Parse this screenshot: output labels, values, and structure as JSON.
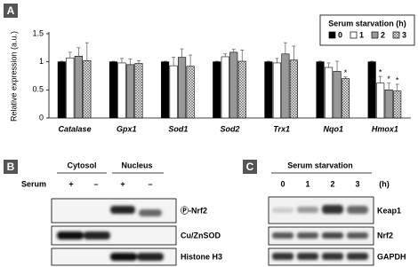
{
  "panel_labels": [
    "A",
    "B",
    "C"
  ],
  "chart_data": {
    "type": "bar",
    "y_label": "Relative expression (a.u.)",
    "legend_title": "Serum starvation (h)",
    "categories": [
      "Catalase",
      "Gpx1",
      "Sod1",
      "Sod2",
      "Trx1",
      "Nqo1",
      "Hmox1"
    ],
    "ylim": [
      0,
      1.5
    ],
    "yticks": [
      0,
      0.5,
      1,
      1.5
    ],
    "legend": "upper right",
    "series": [
      {
        "name": "0",
        "color": "#000000",
        "values": [
          1,
          1,
          1,
          1,
          1,
          1,
          1
        ],
        "errors": [
          0.01,
          0.01,
          0.01,
          0.01,
          0.01,
          0.01,
          0.01
        ],
        "labels": [
          null,
          null,
          null,
          null,
          null,
          null,
          null
        ]
      },
      {
        "name": "1",
        "color": "#ffffff",
        "values": [
          1.07,
          0.98,
          0.93,
          1.09,
          0.98,
          0.9,
          0.62
        ],
        "errors": [
          0.1,
          0.08,
          0.15,
          0.05,
          0.08,
          0.08,
          0.12
        ],
        "labels": [
          null,
          null,
          null,
          null,
          null,
          null,
          "*"
        ]
      },
      {
        "name": "2",
        "color": "#999999",
        "values": [
          1.1,
          0.95,
          1.08,
          1.17,
          1.14,
          0.83,
          0.5
        ],
        "errors": [
          0.15,
          0.1,
          0.15,
          0.05,
          0.2,
          0.18,
          0.12
        ],
        "labels": [
          null,
          null,
          null,
          null,
          null,
          null,
          "*"
        ]
      },
      {
        "name": "3",
        "color": "#ffffff",
        "hatch": "cross",
        "values": [
          1.02,
          0.97,
          0.92,
          1.01,
          1.03,
          0.7,
          0.48
        ],
        "errors": [
          0.32,
          0.05,
          0.2,
          0.2,
          0.25,
          0.03,
          0.12
        ],
        "labels": [
          null,
          null,
          null,
          null,
          null,
          "*",
          "*"
        ]
      }
    ]
  },
  "blot_b": {
    "columns": [
      "Cytosol",
      "Nucleus"
    ],
    "sample_label": "Serum",
    "lanes": [
      "+",
      "–",
      "+",
      "–"
    ],
    "rows": [
      "Ⓟ-Nrf2",
      "Cu/ZnSOD",
      "Histone H3"
    ]
  },
  "blot_c": {
    "title": "Serum starvation",
    "lanes": [
      "0",
      "1",
      "2",
      "3"
    ],
    "unit": "(h)",
    "rows": [
      "Keap1",
      "Nrf2",
      "GAPDH"
    ]
  }
}
